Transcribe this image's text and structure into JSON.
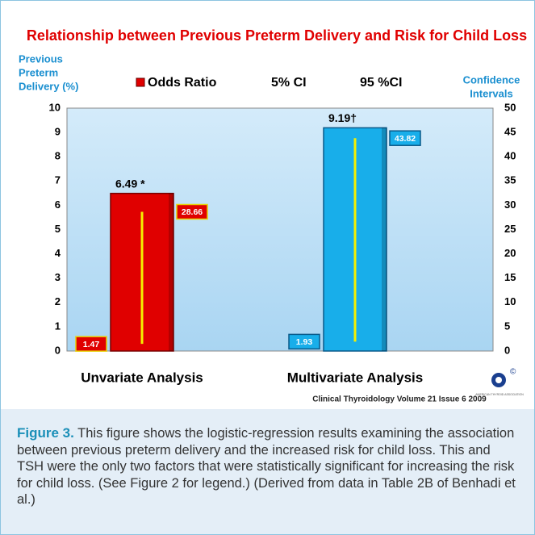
{
  "chart_data": {
    "type": "bar",
    "title": "Relationship between Previous Preterm Delivery and Risk for Child Loss",
    "y_label_lines": [
      "Previous",
      "Preterm",
      "Delivery (%)"
    ],
    "y2_label_lines": [
      "Confidence",
      "Intervals"
    ],
    "categories": [
      "Unvariate Analysis",
      "Multivariate Analysis"
    ],
    "series": [
      {
        "name": "Odds Ratio",
        "color": "#e00000",
        "colors": [
          "#e00000",
          "#18aeea"
        ],
        "values": [
          6.49,
          9.19
        ],
        "value_labels": [
          "6.49 *",
          "9.19†"
        ]
      },
      {
        "name": "5% CI",
        "axis": "y2",
        "values": [
          1.47,
          1.93
        ]
      },
      {
        "name": "95 %CI",
        "axis": "y2",
        "values": [
          28.66,
          43.82
        ]
      }
    ],
    "ci_line_color": "#f4f000",
    "ylim": [
      0,
      10
    ],
    "yticks": [
      0,
      1,
      2,
      3,
      4,
      5,
      6,
      7,
      8,
      9,
      10
    ],
    "y2lim": [
      0,
      50
    ],
    "y2ticks": [
      0,
      5,
      10,
      15,
      20,
      25,
      30,
      35,
      40,
      45,
      50
    ],
    "grid": false,
    "source": "Clinical Thyroidology Volume 21 Issue 6  2009",
    "logo_text": "AMERICAN THYROID ASSOCIATION",
    "logo_mark": "©"
  },
  "caption": {
    "label": "Figure 3.",
    "text": "This figure shows the logistic-regression results examining the association between previous preterm delivery and the increased risk for child loss. This and TSH were the only two factors that were statistically significant for increasing the risk for child loss. (See Figure 2 for legend.) (Derived from data in Table 2B of Benhadi et al.)"
  }
}
